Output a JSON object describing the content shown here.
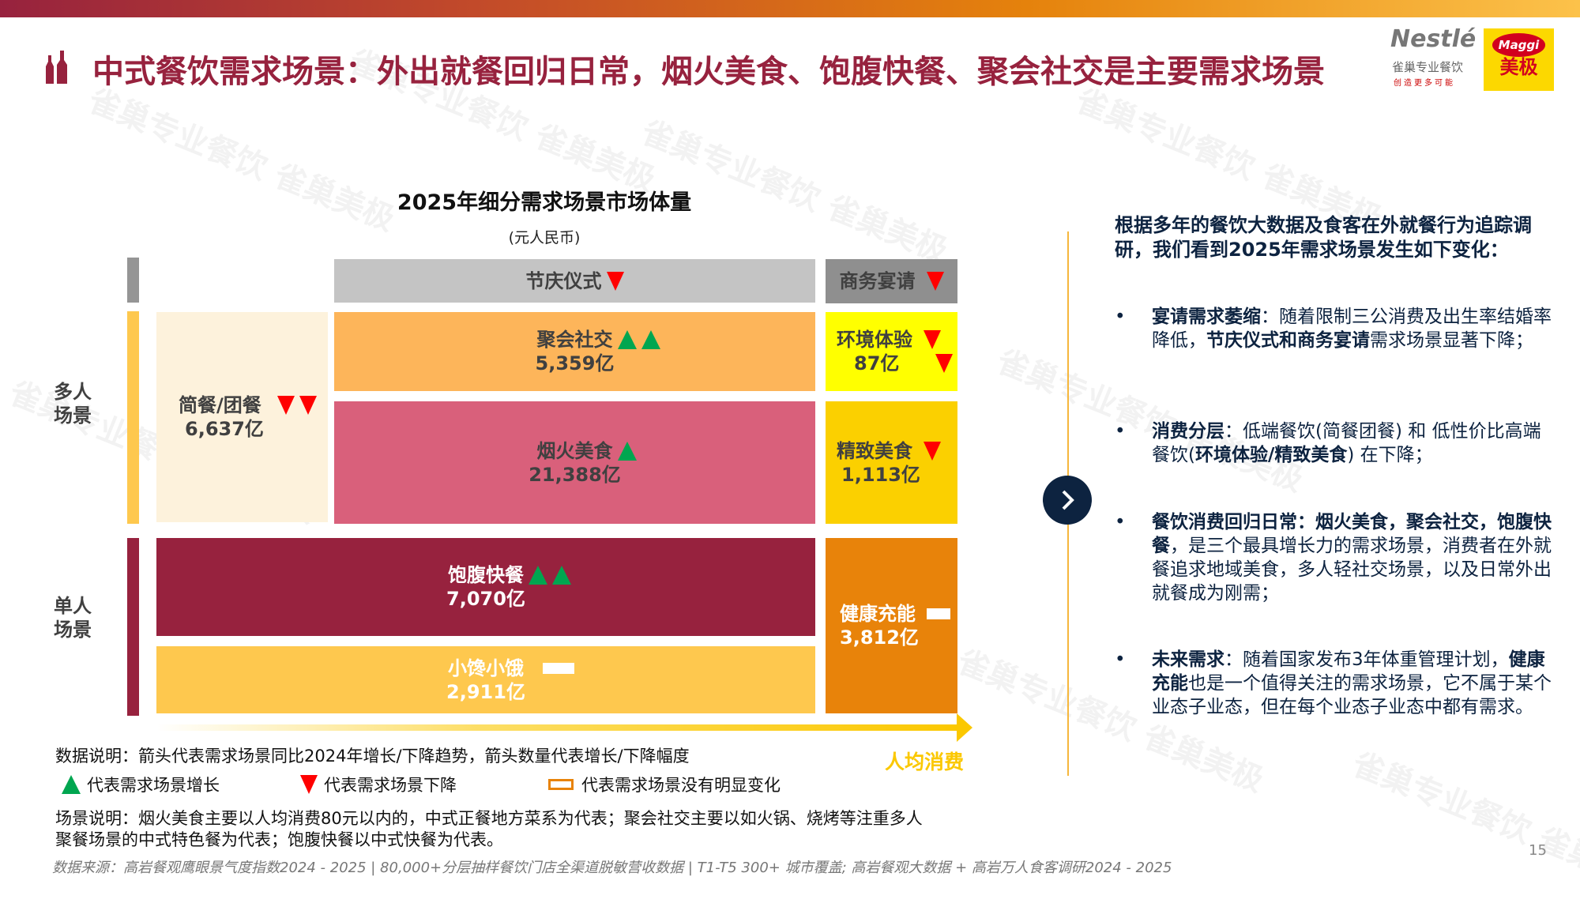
{
  "header": {
    "title": "中式餐饮需求场景：外出就餐回归日常，烟火美食、饱腹快餐、聚会社交是主要需求场景",
    "logo_nestle": "Nestlé",
    "logo_nestle_sub": "雀巢专业餐饮",
    "logo_nestle_slogan": "创造更多可能",
    "logo_maggi": "Maggi",
    "logo_maggi_cn": "美极"
  },
  "watermark": "雀巢专业餐饮 雀巢美极",
  "chart_data": {
    "type": "table",
    "title": "2025年细分需求场景市场体量",
    "unit": "(元人民币)",
    "row_labels": {
      "multi": "多人\n场景",
      "single": "单人\n场景"
    },
    "column_headers": [
      {
        "name": "节庆仪式",
        "trend": "down",
        "arrows": 1
      },
      {
        "name": "商务宴请",
        "trend": "down",
        "arrows": 1
      }
    ],
    "segments": [
      {
        "name": "简餐/团餐",
        "value": "6,637亿",
        "trend": "down",
        "arrows": 2,
        "color": "#fdf2dc"
      },
      {
        "name": "聚会社交",
        "value": "5,359亿",
        "trend": "up",
        "arrows": 2,
        "color": "#fdb55a"
      },
      {
        "name": "烟火美食",
        "value": "21,388亿",
        "trend": "up",
        "arrows": 1,
        "color": "#d9607b"
      },
      {
        "name": "环境体验",
        "value": "87亿",
        "trend": "down",
        "arrows": 2,
        "color": "#ffff00"
      },
      {
        "name": "精致美食",
        "value": "1,113亿",
        "trend": "down",
        "arrows": 1,
        "color": "#fbd000"
      },
      {
        "name": "饱腹快餐",
        "value": "7,070亿",
        "trend": "up",
        "arrows": 2,
        "color": "#97223e"
      },
      {
        "name": "小馋小饿",
        "value": "2,911亿",
        "trend": "flat",
        "arrows": 0,
        "color": "#fec84e"
      },
      {
        "name": "健康充能",
        "value": "3,812亿",
        "trend": "flat",
        "arrows": 0,
        "color": "#e8830a"
      }
    ],
    "x_axis_label": "人均消费"
  },
  "notes": {
    "data_note": "数据说明：箭头代表需求场景同比2024年增长/下降趋势，箭头数量代表增长/下降幅度",
    "legend_up": "代表需求场景增长",
    "legend_down": "代表需求场景下降",
    "legend_flat": "代表需求场景没有明显变化",
    "scene_note_1": "场景说明：烟火美食主要以人均消费80元以内的，中式正餐地方菜系为代表；聚会社交主要以如火锅、烧烤等注重多人",
    "scene_note_2": "聚餐场景的中式特色餐为代表；饱腹快餐以中式快餐为代表。",
    "source": "数据来源：高岩餐观鹰眼景气度指数2024 - 2025 | 80,000+分层抽样餐饮门店全渠道脱敏营收数据 | T1-T5 300+ 城市覆盖; 高岩餐观大数据 + 高岩万人食客调研2024 - 2025"
  },
  "right": {
    "heading": "根据多年的餐饮大数据及食客在外就餐行为追踪调研，我们看到2025年需求场景发生如下变化：",
    "bullets": [
      {
        "b1": "宴请需求萎缩",
        "t1": "：随着限制三公消费及出生率结婚率降低，",
        "b2": "节庆仪式和商务宴请",
        "t2": "需求场景显著下降；"
      },
      {
        "b1": "消费分层",
        "t1": "：低端餐饮(简餐团餐) 和 低性价比高端餐饮(",
        "b2": "环境体验/精致美食",
        "t2": ") 在下降；"
      },
      {
        "b1": "餐饮消费回归日常：烟火美食，聚会社交，饱腹快餐",
        "t1": "，是三个最具增长力的需求场景，消费者在外就餐追求地域美食，多人轻社交场景，以及日常外出就餐成为刚需；",
        "b2": "",
        "t2": ""
      },
      {
        "b1": "未来需求",
        "t1": "：随着国家发布3年体重管理计划，",
        "b2": "健康充能",
        "t2": "也是一个值得关注的需求场景，它不属于某个业态子业态，但在每个业态子业态中都有需求。"
      }
    ]
  },
  "page_number": "15"
}
